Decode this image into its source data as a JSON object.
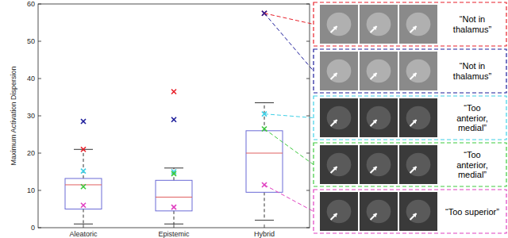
{
  "chart_data": {
    "type": "box",
    "y_label": "Maximum Activation Dispersion",
    "categories": [
      "Aleatoric",
      "Epistemic",
      "Hybrid"
    ],
    "ylim": [
      0,
      60
    ],
    "yticks": [
      0,
      10,
      20,
      30,
      40,
      50,
      60
    ],
    "color": "#6b6bd6",
    "boxes": [
      {
        "low": 1,
        "q1": 5,
        "median": 11.5,
        "q3": 13.2,
        "high": 21
      },
      {
        "low": 1,
        "q1": 4.5,
        "median": 8.2,
        "q3": 12.7,
        "high": 16
      },
      {
        "low": 2,
        "q1": 9.5,
        "median": 20,
        "q3": 26,
        "high": 33.5
      }
    ],
    "series": [
      {
        "color": "#e8202a",
        "marker": "x",
        "values": [
          21,
          36.5,
          57.5
        ],
        "annotation": [
          "“Not in",
          "thalamus”"
        ]
      },
      {
        "color": "#1c1c9a",
        "marker": "x",
        "values": [
          28.5,
          29,
          57.5
        ],
        "annotation": [
          "“Not in",
          "thalamus”"
        ]
      },
      {
        "color": "#3fd0e6",
        "marker": "x",
        "values": [
          15.2,
          15,
          30.5
        ],
        "annotation": [
          "“Too",
          "anterior,",
          "medial”"
        ]
      },
      {
        "color": "#3ec93e",
        "marker": "x",
        "values": [
          11,
          14.5,
          26.5
        ],
        "annotation": [
          "“Too",
          "anterior,",
          "medial”"
        ]
      },
      {
        "color": "#e040c0",
        "marker": "x",
        "values": [
          6,
          5.5,
          11.5
        ],
        "annotation": [
          "“Too superior”"
        ]
      }
    ]
  }
}
